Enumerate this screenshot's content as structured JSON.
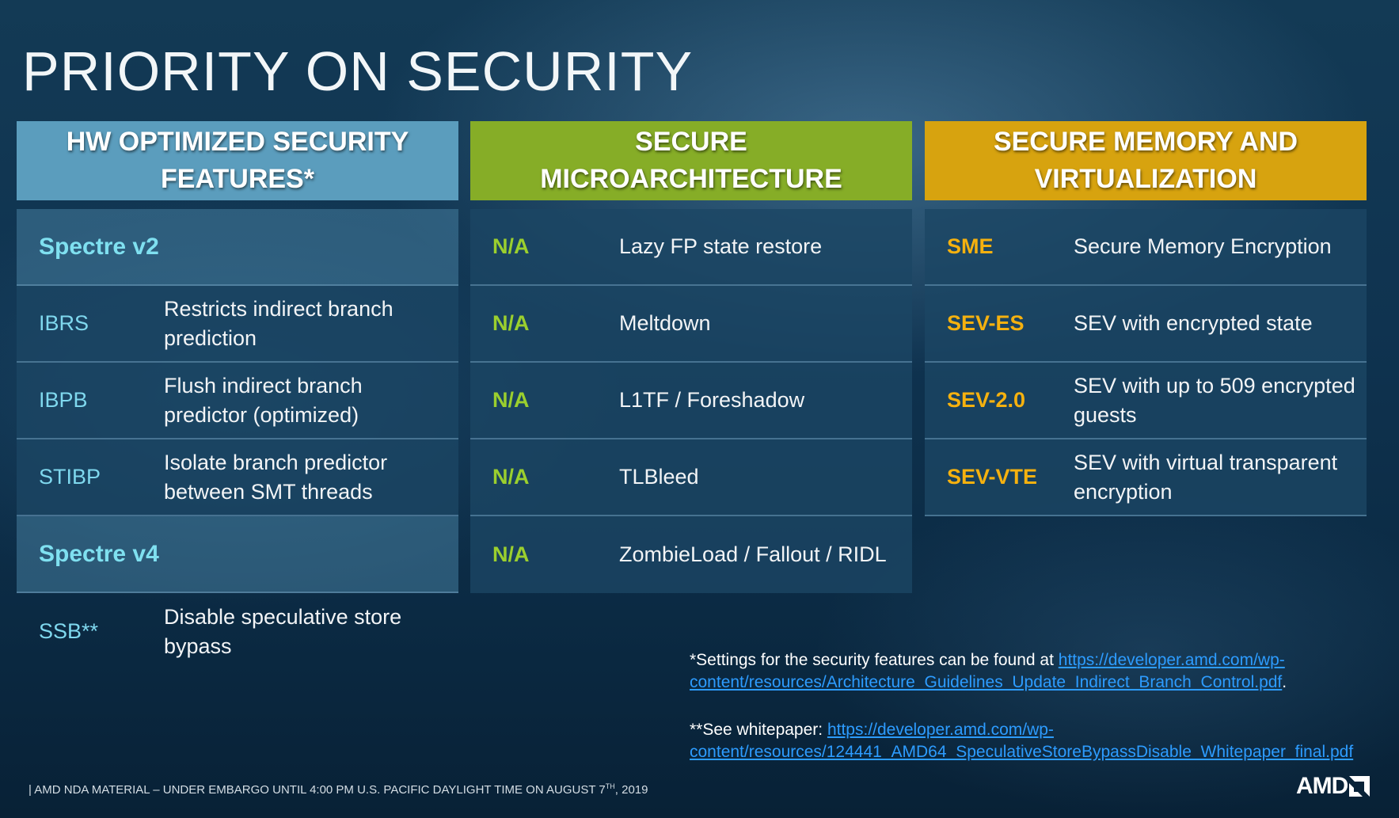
{
  "title": "PRIORITY ON SECURITY",
  "columns": [
    {
      "header": "HW OPTIMIZED SECURITY FEATURES*",
      "rows": [
        {
          "key": "Spectre v2",
          "value": ""
        },
        {
          "key": "IBRS",
          "value": "Restricts indirect branch prediction"
        },
        {
          "key": "IBPB",
          "value": "Flush indirect branch predictor (optimized)"
        },
        {
          "key": "STIBP",
          "value": "Isolate branch predictor between SMT threads"
        },
        {
          "key": "Spectre v4",
          "value": ""
        },
        {
          "key": "SSB**",
          "value": "Disable speculative store bypass"
        }
      ]
    },
    {
      "header": "SECURE MICROARCHITECTURE",
      "rows": [
        {
          "key": "N/A",
          "value": "Lazy FP state restore"
        },
        {
          "key": "N/A",
          "value": "Meltdown"
        },
        {
          "key": "N/A",
          "value": "L1TF / Foreshadow"
        },
        {
          "key": "N/A",
          "value": "TLBleed"
        },
        {
          "key": "N/A",
          "value": "ZombieLoad / Fallout / RIDL"
        }
      ]
    },
    {
      "header": "SECURE MEMORY AND VIRTUALIZATION",
      "rows": [
        {
          "key": "SME",
          "value": "Secure Memory Encryption"
        },
        {
          "key": "SEV-ES",
          "value": "SEV with encrypted state"
        },
        {
          "key": "SEV-2.0",
          "value": "SEV with up to 509 encrypted guests"
        },
        {
          "key": "SEV-VTE",
          "value": "SEV with virtual transparent encryption"
        }
      ]
    }
  ],
  "notes": {
    "note1_text": "*Settings for the security features can be found at ",
    "note1_link": "https://developer.amd.com/wp-content/resources/Architecture_Guidelines_Update_Indirect_Branch_Control.pdf",
    "note1_end": ".",
    "note2_text": "**See whitepaper:  ",
    "note2_link": "https://developer.amd.com/wp-content/resources/124441_AMD64_SpeculativeStoreBypassDisable_Whitepaper_final.pdf"
  },
  "footer": {
    "text_before": "| AMD  NDA MATERIAL – UNDER  EMBARGO UNTIL 4:00 PM U.S. PACIFIC DAYLIGHT TIME ON AUGUST 7",
    "superscript": "TH",
    "text_after": ", 2019"
  },
  "logo_text": "AMD",
  "colors": {
    "col1_header": "#5b9dbd",
    "col2_header": "#86ad27",
    "col3_header": "#d7a30f",
    "section_label": "#7fe0f0",
    "key_green": "#9bcf2e",
    "key_gold": "#f5b10f",
    "link": "#2d9cff"
  }
}
